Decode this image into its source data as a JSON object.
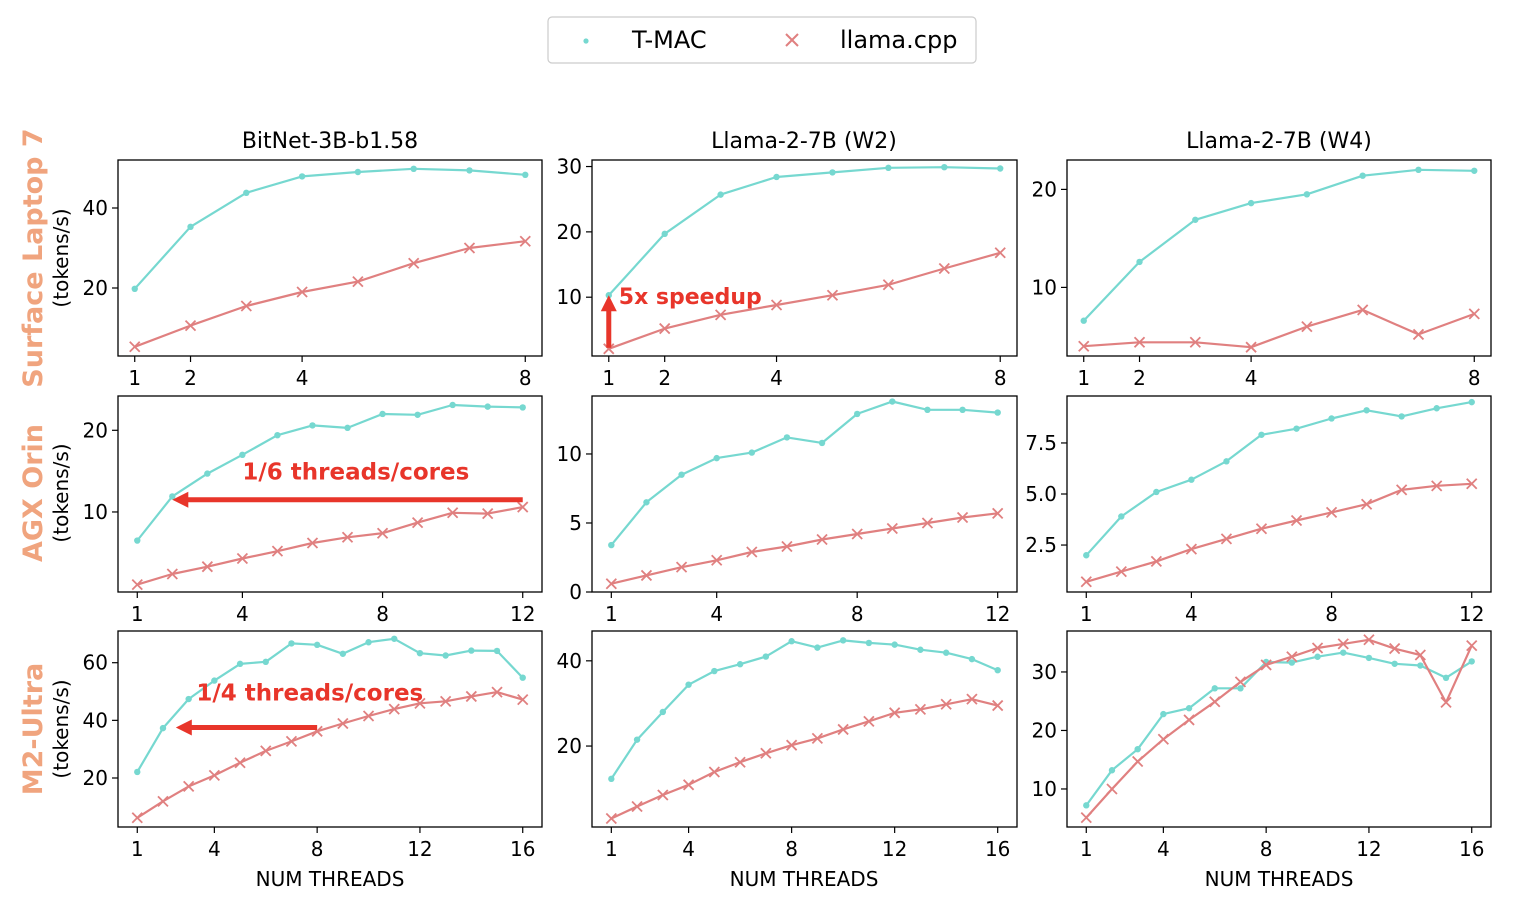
{
  "colors": {
    "tmac": "#76d8d0",
    "llama": "#e08080",
    "annotation": "#e8352a",
    "row_label": "#f0a47e",
    "axis": "#000000"
  },
  "legend": {
    "entries": [
      "T-MAC",
      "llama.cpp"
    ],
    "markers": [
      "dot",
      "x"
    ],
    "placement": "top-center"
  },
  "x_axis_label": "NUM THREADS",
  "y_axis_unit": "(tokens/s)",
  "column_titles": [
    "BitNet-3B-b1.58",
    "Llama-2-7B (W2)",
    "Llama-2-7B (W4)"
  ],
  "row_labels": [
    "Surface Laptop 7",
    "AGX Orin",
    "M2-Ultra"
  ],
  "chart_data": [
    {
      "type": "line",
      "row": 0,
      "col": 0,
      "device": "Surface Laptop 7",
      "title": "BitNet-3B-b1.58",
      "xlabel": "",
      "ylabel": "(tokens/s)",
      "xlim": [
        0.7,
        8.3
      ],
      "ylim": [
        3,
        52
      ],
      "xticks": [
        1,
        2,
        4,
        8
      ],
      "yticks": [
        20,
        40
      ],
      "series": [
        {
          "name": "T-MAC",
          "x": [
            1,
            2,
            3,
            4,
            5,
            6,
            7,
            8
          ],
          "values": [
            19.8,
            35.3,
            43.8,
            47.9,
            49.0,
            49.8,
            49.4,
            48.3
          ]
        },
        {
          "name": "llama.cpp",
          "x": [
            1,
            2,
            3,
            4,
            5,
            6,
            7,
            8
          ],
          "values": [
            5.3,
            10.6,
            15.5,
            19.0,
            21.6,
            26.2,
            30.0,
            31.7
          ]
        }
      ],
      "annotations": []
    },
    {
      "type": "line",
      "row": 0,
      "col": 1,
      "device": "Surface Laptop 7",
      "title": "Llama-2-7B (W2)",
      "xlabel": "",
      "ylabel": "",
      "xlim": [
        0.7,
        8.3
      ],
      "ylim": [
        1,
        31
      ],
      "xticks": [
        1,
        2,
        4,
        8
      ],
      "yticks": [
        10,
        20,
        30
      ],
      "series": [
        {
          "name": "T-MAC",
          "x": [
            1,
            2,
            3,
            4,
            5,
            6,
            7,
            8
          ],
          "values": [
            10.3,
            19.7,
            25.7,
            28.4,
            29.1,
            29.8,
            29.9,
            29.7
          ]
        },
        {
          "name": "llama.cpp",
          "x": [
            1,
            2,
            3,
            4,
            5,
            6,
            7,
            8
          ],
          "values": [
            2.1,
            5.2,
            7.3,
            8.8,
            10.3,
            11.9,
            14.4,
            16.8
          ]
        }
      ],
      "annotations": [
        {
          "text": "5x speedup",
          "kind": "arrow-up",
          "x": 1,
          "from": 2.1,
          "to": 10.3
        }
      ]
    },
    {
      "type": "line",
      "row": 0,
      "col": 2,
      "device": "Surface Laptop 7",
      "title": "Llama-2-7B (W4)",
      "xlabel": "",
      "ylabel": "",
      "xlim": [
        0.7,
        8.3
      ],
      "ylim": [
        3,
        23
      ],
      "xticks": [
        1,
        2,
        4,
        8
      ],
      "yticks": [
        10,
        20
      ],
      "series": [
        {
          "name": "T-MAC",
          "x": [
            1,
            2,
            3,
            4,
            5,
            6,
            7,
            8
          ],
          "values": [
            6.6,
            12.6,
            16.9,
            18.6,
            19.5,
            21.4,
            22.0,
            21.9
          ]
        },
        {
          "name": "llama.cpp",
          "x": [
            1,
            2,
            3,
            4,
            5,
            6,
            7,
            8
          ],
          "values": [
            4.0,
            4.4,
            4.4,
            3.9,
            6.0,
            7.7,
            5.2,
            7.3
          ]
        }
      ],
      "annotations": []
    },
    {
      "type": "line",
      "row": 1,
      "col": 0,
      "device": "AGX Orin",
      "title": "",
      "xlabel": "",
      "ylabel": "(tokens/s)",
      "xlim": [
        0.45,
        12.55
      ],
      "ylim": [
        0.2,
        24.2
      ],
      "xticks": [
        1,
        4,
        8,
        12
      ],
      "yticks": [
        10,
        20
      ],
      "series": [
        {
          "name": "T-MAC",
          "x": [
            1,
            2,
            3,
            4,
            5,
            6,
            7,
            8,
            9,
            10,
            11,
            12
          ],
          "values": [
            6.5,
            11.9,
            14.7,
            17.0,
            19.4,
            20.6,
            20.3,
            22.0,
            21.9,
            23.1,
            22.9,
            22.8
          ]
        },
        {
          "name": "llama.cpp",
          "x": [
            1,
            2,
            3,
            4,
            5,
            6,
            7,
            8,
            9,
            10,
            11,
            12
          ],
          "values": [
            1.1,
            2.4,
            3.3,
            4.3,
            5.2,
            6.2,
            6.9,
            7.4,
            8.7,
            9.9,
            9.8,
            10.6
          ]
        }
      ],
      "annotations": [
        {
          "text": "1/6 threads/cores",
          "kind": "arrow-left",
          "y": 11.5,
          "from_x": 12,
          "to_x": 2
        }
      ]
    },
    {
      "type": "line",
      "row": 1,
      "col": 1,
      "device": "AGX Orin",
      "title": "",
      "xlabel": "",
      "ylabel": "",
      "xlim": [
        0.45,
        12.55
      ],
      "ylim": [
        0,
        14.2
      ],
      "xticks": [
        1,
        4,
        8,
        12
      ],
      "yticks": [
        0,
        5,
        10
      ],
      "series": [
        {
          "name": "T-MAC",
          "x": [
            1,
            2,
            3,
            4,
            5,
            6,
            7,
            8,
            9,
            10,
            11,
            12
          ],
          "values": [
            3.4,
            6.5,
            8.5,
            9.7,
            10.1,
            11.2,
            10.8,
            12.9,
            13.8,
            13.2,
            13.2,
            13.0
          ]
        },
        {
          "name": "llama.cpp",
          "x": [
            1,
            2,
            3,
            4,
            5,
            6,
            7,
            8,
            9,
            10,
            11,
            12
          ],
          "values": [
            0.6,
            1.2,
            1.8,
            2.3,
            2.9,
            3.3,
            3.8,
            4.2,
            4.6,
            5.0,
            5.4,
            5.7
          ]
        }
      ],
      "annotations": []
    },
    {
      "type": "line",
      "row": 1,
      "col": 2,
      "device": "AGX Orin",
      "title": "",
      "xlabel": "",
      "ylabel": "",
      "xlim": [
        0.45,
        12.55
      ],
      "ylim": [
        0.2,
        9.8
      ],
      "xticks": [
        1,
        4,
        8,
        12
      ],
      "yticks": [
        2.5,
        5.0,
        7.5
      ],
      "ytick_labels": [
        "2.5",
        "5.0",
        "7.5"
      ],
      "series": [
        {
          "name": "T-MAC",
          "x": [
            1,
            2,
            3,
            4,
            5,
            6,
            7,
            8,
            9,
            10,
            11,
            12
          ],
          "values": [
            2.0,
            3.9,
            5.1,
            5.7,
            6.6,
            7.9,
            8.2,
            8.7,
            9.1,
            8.8,
            9.2,
            9.5
          ]
        },
        {
          "name": "llama.cpp",
          "x": [
            1,
            2,
            3,
            4,
            5,
            6,
            7,
            8,
            9,
            10,
            11,
            12
          ],
          "values": [
            0.7,
            1.2,
            1.7,
            2.3,
            2.8,
            3.3,
            3.7,
            4.1,
            4.5,
            5.2,
            5.4,
            5.5
          ]
        }
      ],
      "annotations": []
    },
    {
      "type": "line",
      "row": 2,
      "col": 0,
      "device": "M2-Ultra",
      "title": "",
      "xlabel": "NUM THREADS",
      "ylabel": "(tokens/s)",
      "xlim": [
        0.25,
        16.75
      ],
      "ylim": [
        3,
        71
      ],
      "xticks": [
        1,
        4,
        8,
        12,
        16
      ],
      "yticks": [
        20,
        40,
        60
      ],
      "series": [
        {
          "name": "T-MAC",
          "x": [
            1,
            2,
            3,
            4,
            5,
            6,
            7,
            8,
            9,
            10,
            11,
            12,
            13,
            14,
            15,
            16
          ],
          "values": [
            22.1,
            37.3,
            47.4,
            53.8,
            59.6,
            60.3,
            66.7,
            66.2,
            63.1,
            67.1,
            68.3,
            63.3,
            62.5,
            64.2,
            64.1,
            54.8
          ]
        },
        {
          "name": "llama.cpp",
          "x": [
            1,
            2,
            3,
            4,
            5,
            6,
            7,
            8,
            9,
            10,
            11,
            12,
            13,
            14,
            15,
            16
          ],
          "values": [
            6.2,
            11.9,
            17.1,
            20.9,
            25.3,
            29.4,
            32.7,
            36.2,
            38.9,
            41.5,
            43.9,
            45.9,
            46.6,
            48.3,
            49.8,
            47.2
          ]
        }
      ],
      "annotations": [
        {
          "text": "1/4 threads/cores",
          "kind": "arrow-left",
          "y": 37.5,
          "from_x": 8,
          "to_x": 2.5
        }
      ]
    },
    {
      "type": "line",
      "row": 2,
      "col": 1,
      "device": "M2-Ultra",
      "title": "",
      "xlabel": "NUM THREADS",
      "ylabel": "",
      "xlim": [
        0.25,
        16.75
      ],
      "ylim": [
        1,
        47
      ],
      "xticks": [
        1,
        4,
        8,
        12,
        16
      ],
      "yticks": [
        20,
        40
      ],
      "series": [
        {
          "name": "T-MAC",
          "x": [
            1,
            2,
            3,
            4,
            5,
            6,
            7,
            8,
            9,
            10,
            11,
            12,
            13,
            14,
            15,
            16
          ],
          "values": [
            12.3,
            21.5,
            28.0,
            34.4,
            37.6,
            39.2,
            41.0,
            44.6,
            43.1,
            44.8,
            44.2,
            43.8,
            42.6,
            41.9,
            40.4,
            37.8
          ]
        },
        {
          "name": "llama.cpp",
          "x": [
            1,
            2,
            3,
            4,
            5,
            6,
            7,
            8,
            9,
            10,
            11,
            12,
            13,
            14,
            15,
            16
          ],
          "values": [
            3.0,
            5.8,
            8.5,
            10.9,
            13.9,
            16.2,
            18.3,
            20.2,
            21.8,
            23.9,
            25.8,
            27.8,
            28.6,
            29.8,
            31.0,
            29.5
          ]
        }
      ],
      "annotations": []
    },
    {
      "type": "line",
      "row": 2,
      "col": 2,
      "device": "M2-Ultra",
      "title": "",
      "xlabel": "NUM THREADS",
      "ylabel": "",
      "xlim": [
        0.25,
        16.75
      ],
      "ylim": [
        3.5,
        37
      ],
      "xticks": [
        1,
        4,
        8,
        12,
        16
      ],
      "yticks": [
        10,
        20,
        30
      ],
      "series": [
        {
          "name": "T-MAC",
          "x": [
            1,
            2,
            3,
            4,
            5,
            6,
            7,
            8,
            9,
            10,
            11,
            12,
            13,
            14,
            15,
            16
          ],
          "values": [
            7.2,
            13.2,
            16.8,
            22.8,
            23.8,
            27.2,
            27.2,
            31.7,
            31.6,
            32.6,
            33.3,
            32.4,
            31.4,
            31.1,
            29.0,
            31.8
          ]
        },
        {
          "name": "llama.cpp",
          "x": [
            1,
            2,
            3,
            4,
            5,
            6,
            7,
            8,
            9,
            10,
            11,
            12,
            13,
            14,
            15,
            16
          ],
          "values": [
            5.1,
            10.0,
            14.7,
            18.5,
            21.8,
            24.9,
            28.3,
            31.2,
            32.6,
            34.1,
            34.8,
            35.5,
            34.0,
            32.9,
            24.8,
            34.5
          ]
        }
      ],
      "annotations": []
    }
  ]
}
